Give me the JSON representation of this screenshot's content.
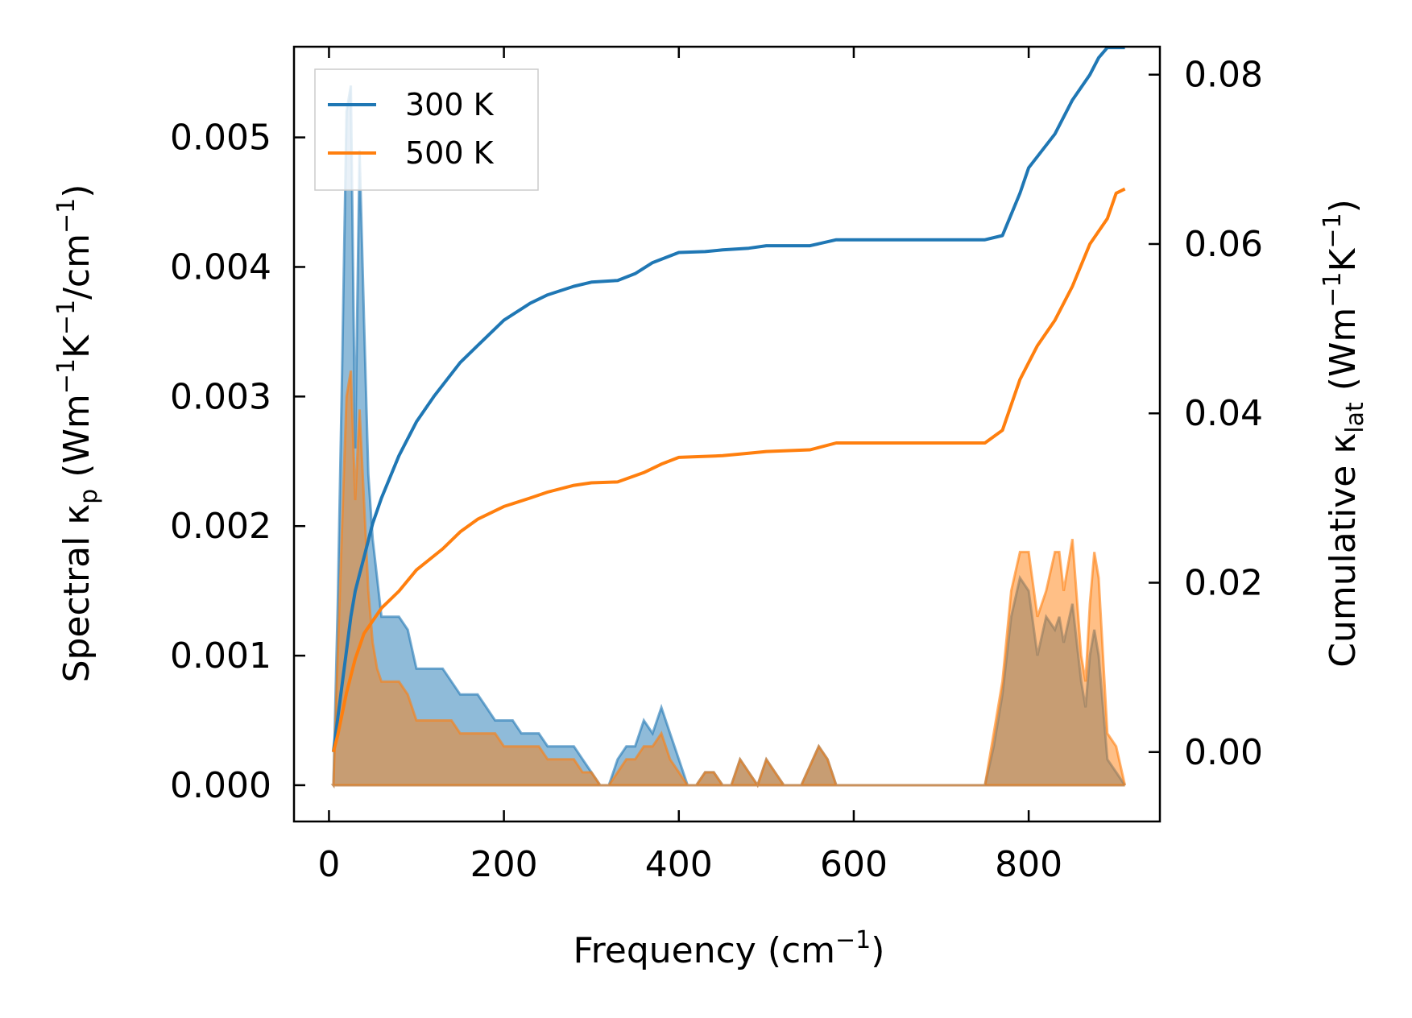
{
  "chart_data": {
    "type": "area",
    "xlabel": "Frequency (cm",
    "xlabel_sup": "−1",
    "xlabel_end": ")",
    "ylabel_left": {
      "a": "Spectral κ",
      "a_sub": "p",
      "b": " (Wm",
      "b_sup": "−1",
      "c": "K",
      "c_sup": "−1",
      "d": "/cm",
      "d_sup": "−1",
      "e": ")"
    },
    "ylabel_right": {
      "a": "Cumulative κ",
      "a_sub": "lat",
      "b": " (Wm",
      "b_sup": "−1",
      "c": "K",
      "c_sup": "−1",
      "d": ")"
    },
    "xlim": [
      -40,
      950
    ],
    "ylim_left": [
      -0.00028,
      0.0057
    ],
    "ylim_right": [
      -0.0082,
      0.0833
    ],
    "xticks": [
      0,
      200,
      400,
      600,
      800
    ],
    "xtick_labels": [
      "0",
      "200",
      "400",
      "600",
      "800"
    ],
    "yticks_left": [
      0,
      0.001,
      0.002,
      0.003,
      0.004,
      0.005
    ],
    "ytick_labels_left": [
      "0.000",
      "0.001",
      "0.002",
      "0.003",
      "0.004",
      "0.005"
    ],
    "yticks_right": [
      0,
      0.02,
      0.04,
      0.06,
      0.08
    ],
    "ytick_labels_right": [
      "0.00",
      "0.02",
      "0.04",
      "0.06",
      "0.08"
    ],
    "legend": {
      "position": "top-left"
    },
    "series": [
      {
        "name": "300 K",
        "color": "#1f77b4",
        "spectral": [
          [
            5,
            0
          ],
          [
            10,
            0.0014
          ],
          [
            15,
            0.0032
          ],
          [
            20,
            0.0052
          ],
          [
            25,
            0.0054
          ],
          [
            30,
            0.0026
          ],
          [
            35,
            0.0049
          ],
          [
            40,
            0.0036
          ],
          [
            45,
            0.0024
          ],
          [
            50,
            0.0019
          ],
          [
            55,
            0.0016
          ],
          [
            60,
            0.0013
          ],
          [
            70,
            0.0013
          ],
          [
            80,
            0.0013
          ],
          [
            90,
            0.0012
          ],
          [
            100,
            0.0009
          ],
          [
            110,
            0.0009
          ],
          [
            120,
            0.0009
          ],
          [
            130,
            0.0009
          ],
          [
            140,
            0.0008
          ],
          [
            150,
            0.0007
          ],
          [
            160,
            0.0007
          ],
          [
            170,
            0.0007
          ],
          [
            180,
            0.0006
          ],
          [
            190,
            0.0005
          ],
          [
            200,
            0.0005
          ],
          [
            210,
            0.0005
          ],
          [
            220,
            0.0004
          ],
          [
            230,
            0.0004
          ],
          [
            240,
            0.0004
          ],
          [
            250,
            0.0003
          ],
          [
            260,
            0.0003
          ],
          [
            270,
            0.0003
          ],
          [
            280,
            0.0003
          ],
          [
            290,
            0.0002
          ],
          [
            300,
            0.0001
          ],
          [
            310,
            0
          ],
          [
            320,
            0
          ],
          [
            330,
            0.0002
          ],
          [
            340,
            0.0003
          ],
          [
            350,
            0.0003
          ],
          [
            360,
            0.0005
          ],
          [
            370,
            0.0004
          ],
          [
            380,
            0.0006
          ],
          [
            390,
            0.0004
          ],
          [
            400,
            0.0002
          ],
          [
            410,
            0
          ],
          [
            420,
            0
          ],
          [
            430,
            0.0001
          ],
          [
            440,
            0.0001
          ],
          [
            450,
            0
          ],
          [
            460,
            0
          ],
          [
            470,
            0.0002
          ],
          [
            480,
            0.0001
          ],
          [
            490,
            0
          ],
          [
            500,
            0.0002
          ],
          [
            510,
            0.0001
          ],
          [
            520,
            0
          ],
          [
            530,
            0
          ],
          [
            540,
            0
          ],
          [
            560,
            0.0003
          ],
          [
            570,
            0.0002
          ],
          [
            580,
            0
          ],
          [
            750,
            0
          ],
          [
            760,
            0.0003
          ],
          [
            770,
            0.0007
          ],
          [
            780,
            0.0013
          ],
          [
            790,
            0.0016
          ],
          [
            800,
            0.0015
          ],
          [
            810,
            0.001
          ],
          [
            820,
            0.0013
          ],
          [
            830,
            0.0012
          ],
          [
            835,
            0.0013
          ],
          [
            840,
            0.0011
          ],
          [
            850,
            0.0014
          ],
          [
            860,
            0.0008
          ],
          [
            865,
            0.0006
          ],
          [
            870,
            0.001
          ],
          [
            875,
            0.0012
          ],
          [
            880,
            0.001
          ],
          [
            890,
            0.0002
          ],
          [
            900,
            0.0001
          ],
          [
            910,
            0
          ]
        ],
        "cumulative": [
          [
            5,
            0
          ],
          [
            10,
            0.004
          ],
          [
            20,
            0.012
          ],
          [
            25,
            0.016
          ],
          [
            30,
            0.019
          ],
          [
            35,
            0.021
          ],
          [
            40,
            0.023
          ],
          [
            50,
            0.027
          ],
          [
            60,
            0.03
          ],
          [
            80,
            0.035
          ],
          [
            100,
            0.039
          ],
          [
            120,
            0.042
          ],
          [
            150,
            0.046
          ],
          [
            170,
            0.048
          ],
          [
            200,
            0.051
          ],
          [
            230,
            0.053
          ],
          [
            250,
            0.054
          ],
          [
            280,
            0.055
          ],
          [
            300,
            0.0555
          ],
          [
            330,
            0.0557
          ],
          [
            350,
            0.0565
          ],
          [
            370,
            0.0578
          ],
          [
            400,
            0.059
          ],
          [
            430,
            0.0591
          ],
          [
            450,
            0.0593
          ],
          [
            480,
            0.0595
          ],
          [
            500,
            0.0598
          ],
          [
            550,
            0.0598
          ],
          [
            580,
            0.0605
          ],
          [
            700,
            0.0605
          ],
          [
            750,
            0.0605
          ],
          [
            770,
            0.061
          ],
          [
            790,
            0.066
          ],
          [
            800,
            0.069
          ],
          [
            830,
            0.073
          ],
          [
            850,
            0.077
          ],
          [
            870,
            0.08
          ],
          [
            880,
            0.082
          ],
          [
            890,
            0.0832
          ],
          [
            910,
            0.0832
          ]
        ]
      },
      {
        "name": "500 K",
        "color": "#ff7f0e",
        "spectral": [
          [
            5,
            0
          ],
          [
            10,
            0.001
          ],
          [
            15,
            0.002
          ],
          [
            20,
            0.003
          ],
          [
            25,
            0.0032
          ],
          [
            30,
            0.0022
          ],
          [
            35,
            0.0029
          ],
          [
            40,
            0.0022
          ],
          [
            45,
            0.0015
          ],
          [
            50,
            0.0011
          ],
          [
            55,
            0.0009
          ],
          [
            60,
            0.0008
          ],
          [
            70,
            0.0008
          ],
          [
            80,
            0.0008
          ],
          [
            90,
            0.0007
          ],
          [
            100,
            0.0005
          ],
          [
            110,
            0.0005
          ],
          [
            120,
            0.0005
          ],
          [
            130,
            0.0005
          ],
          [
            140,
            0.0005
          ],
          [
            150,
            0.0004
          ],
          [
            160,
            0.0004
          ],
          [
            170,
            0.0004
          ],
          [
            180,
            0.0004
          ],
          [
            190,
            0.0004
          ],
          [
            200,
            0.0003
          ],
          [
            210,
            0.0003
          ],
          [
            220,
            0.0003
          ],
          [
            230,
            0.0003
          ],
          [
            240,
            0.0003
          ],
          [
            250,
            0.0002
          ],
          [
            260,
            0.0002
          ],
          [
            270,
            0.0002
          ],
          [
            280,
            0.0002
          ],
          [
            290,
            0.0001
          ],
          [
            300,
            0.0001
          ],
          [
            310,
            0
          ],
          [
            320,
            0
          ],
          [
            330,
            0.0001
          ],
          [
            340,
            0.0002
          ],
          [
            350,
            0.0002
          ],
          [
            360,
            0.0003
          ],
          [
            370,
            0.0003
          ],
          [
            380,
            0.0004
          ],
          [
            390,
            0.0002
          ],
          [
            400,
            0.0001
          ],
          [
            410,
            0
          ],
          [
            420,
            0
          ],
          [
            430,
            0.0001
          ],
          [
            440,
            0.0001
          ],
          [
            450,
            0
          ],
          [
            460,
            0
          ],
          [
            470,
            0.0002
          ],
          [
            480,
            0.0001
          ],
          [
            490,
            0
          ],
          [
            500,
            0.0002
          ],
          [
            510,
            0.0001
          ],
          [
            520,
            0
          ],
          [
            530,
            0
          ],
          [
            540,
            0
          ],
          [
            560,
            0.0003
          ],
          [
            570,
            0.0002
          ],
          [
            580,
            0
          ],
          [
            750,
            0
          ],
          [
            760,
            0.0004
          ],
          [
            770,
            0.0008
          ],
          [
            780,
            0.0015
          ],
          [
            790,
            0.0018
          ],
          [
            800,
            0.0018
          ],
          [
            810,
            0.0013
          ],
          [
            820,
            0.0015
          ],
          [
            830,
            0.0018
          ],
          [
            835,
            0.0018
          ],
          [
            840,
            0.0015
          ],
          [
            850,
            0.0019
          ],
          [
            860,
            0.001
          ],
          [
            865,
            0.0008
          ],
          [
            870,
            0.0014
          ],
          [
            875,
            0.0018
          ],
          [
            880,
            0.0016
          ],
          [
            890,
            0.0004
          ],
          [
            900,
            0.0003
          ],
          [
            910,
            0
          ]
        ],
        "cumulative": [
          [
            5,
            0
          ],
          [
            10,
            0.002
          ],
          [
            20,
            0.007
          ],
          [
            30,
            0.011
          ],
          [
            40,
            0.014
          ],
          [
            60,
            0.017
          ],
          [
            80,
            0.019
          ],
          [
            100,
            0.0215
          ],
          [
            130,
            0.024
          ],
          [
            150,
            0.026
          ],
          [
            170,
            0.0275
          ],
          [
            200,
            0.029
          ],
          [
            230,
            0.03
          ],
          [
            250,
            0.0307
          ],
          [
            280,
            0.0315
          ],
          [
            300,
            0.0318
          ],
          [
            330,
            0.0319
          ],
          [
            360,
            0.033
          ],
          [
            380,
            0.034
          ],
          [
            400,
            0.0348
          ],
          [
            450,
            0.035
          ],
          [
            480,
            0.0353
          ],
          [
            500,
            0.0355
          ],
          [
            550,
            0.0357
          ],
          [
            580,
            0.0365
          ],
          [
            700,
            0.0365
          ],
          [
            750,
            0.0365
          ],
          [
            770,
            0.038
          ],
          [
            790,
            0.044
          ],
          [
            810,
            0.048
          ],
          [
            830,
            0.051
          ],
          [
            850,
            0.055
          ],
          [
            870,
            0.06
          ],
          [
            890,
            0.063
          ],
          [
            900,
            0.066
          ],
          [
            910,
            0.0665
          ]
        ]
      }
    ]
  }
}
